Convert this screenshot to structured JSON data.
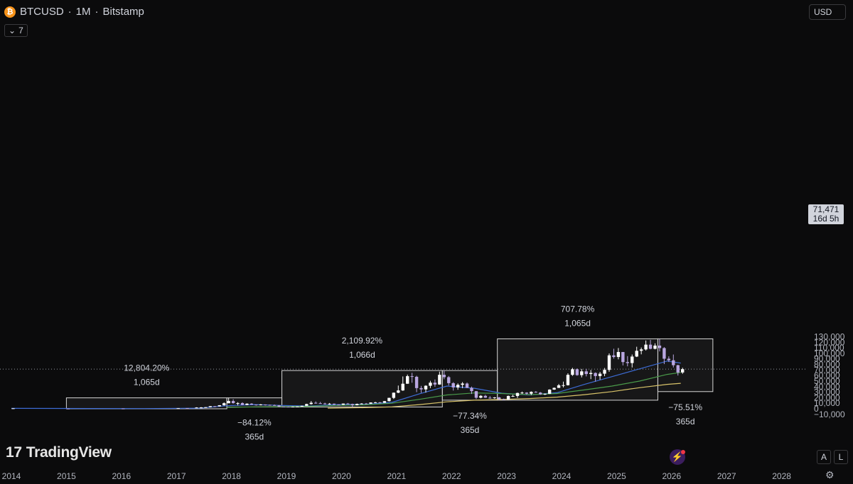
{
  "header": {
    "coin_glyph": "₿",
    "symbol": "BTCUSD",
    "separator1": "·",
    "interval": "1M",
    "separator2": "·",
    "exchange": "Bitstamp"
  },
  "indicators_toggle": {
    "icon": "chevron-down-icon",
    "glyph": "⌄",
    "count": "7"
  },
  "currency": "USD",
  "price_label": {
    "price": "71,471",
    "countdown": "16d 5h"
  },
  "buttons": {
    "auto": "A",
    "log": "L"
  },
  "brand": {
    "mark": "17",
    "name": "TradingView"
  },
  "icons": {
    "bolt_glyph": "⚡",
    "settings_glyph": "⚙"
  },
  "colors": {
    "background": "#0b0b0c",
    "up_candle": "#ffffff",
    "down_candle": "#b9a6e0",
    "ma_blue": "#3d6cd6",
    "ma_green": "#4a9b4a",
    "ma_yellow": "#d9c46a",
    "box_stroke": "#d6d6d6"
  },
  "chart_data": {
    "type": "candlestick",
    "x_axis": {
      "ticks": [
        "2014",
        "2015",
        "2016",
        "2017",
        "2018",
        "2019",
        "2020",
        "2021",
        "2022",
        "2023",
        "2024",
        "2025",
        "2026",
        "2027",
        "2028"
      ],
      "range": [
        "2014-01",
        "2028-06"
      ]
    },
    "y_axis": {
      "ticks": [
        "−10,000",
        "0",
        "10,000",
        "20,000",
        "30,000",
        "40,000",
        "50,000",
        "60,000",
        "70,000",
        "80,000",
        "90,000",
        "100,000",
        "110,000",
        "120,000",
        "130,000"
      ],
      "range": [
        -14000,
        136000
      ]
    },
    "current_price": 71471,
    "candles": [
      {
        "t": "2014-01",
        "o": 800,
        "h": 1000,
        "l": 750,
        "c": 820
      },
      {
        "t": "2015-01",
        "o": 320,
        "h": 330,
        "l": 170,
        "c": 220
      },
      {
        "t": "2016-01",
        "o": 430,
        "h": 460,
        "l": 360,
        "c": 370
      },
      {
        "t": "2017-01",
        "o": 960,
        "h": 1150,
        "l": 750,
        "c": 970
      },
      {
        "t": "2017-03",
        "o": 1190,
        "h": 1300,
        "l": 890,
        "c": 1080
      },
      {
        "t": "2017-05",
        "o": 1350,
        "h": 2800,
        "l": 1350,
        "c": 2300
      },
      {
        "t": "2017-06",
        "o": 2300,
        "h": 3000,
        "l": 2100,
        "c": 2480
      },
      {
        "t": "2017-07",
        "o": 2480,
        "h": 2900,
        "l": 1800,
        "c": 2870
      },
      {
        "t": "2017-08",
        "o": 2870,
        "h": 4800,
        "l": 2700,
        "c": 4700
      },
      {
        "t": "2017-09",
        "o": 4700,
        "h": 5000,
        "l": 2900,
        "c": 4340
      },
      {
        "t": "2017-10",
        "o": 4340,
        "h": 6500,
        "l": 4100,
        "c": 6450
      },
      {
        "t": "2017-11",
        "o": 6450,
        "h": 11400,
        "l": 5500,
        "c": 10000
      },
      {
        "t": "2017-12",
        "o": 10000,
        "h": 19700,
        "l": 10000,
        "c": 14000
      },
      {
        "t": "2018-01",
        "o": 14000,
        "h": 17200,
        "l": 9200,
        "c": 10200
      },
      {
        "t": "2018-02",
        "o": 10200,
        "h": 11800,
        "l": 6000,
        "c": 10300
      },
      {
        "t": "2018-03",
        "o": 10300,
        "h": 11700,
        "l": 6600,
        "c": 6900
      },
      {
        "t": "2018-04",
        "o": 6900,
        "h": 9800,
        "l": 6500,
        "c": 9250
      },
      {
        "t": "2018-05",
        "o": 9250,
        "h": 10000,
        "l": 7000,
        "c": 7500
      },
      {
        "t": "2018-06",
        "o": 7500,
        "h": 7700,
        "l": 5800,
        "c": 6400
      },
      {
        "t": "2018-07",
        "o": 6400,
        "h": 8500,
        "l": 6100,
        "c": 7750
      },
      {
        "t": "2018-08",
        "o": 7750,
        "h": 7800,
        "l": 5900,
        "c": 7000
      },
      {
        "t": "2018-09",
        "o": 7000,
        "h": 7400,
        "l": 6100,
        "c": 6600
      },
      {
        "t": "2018-10",
        "o": 6600,
        "h": 7700,
        "l": 6200,
        "c": 6300
      },
      {
        "t": "2018-11",
        "o": 6300,
        "h": 6600,
        "l": 3500,
        "c": 4000
      },
      {
        "t": "2018-12",
        "o": 4000,
        "h": 4400,
        "l": 3150,
        "c": 3700
      },
      {
        "t": "2019-01",
        "o": 3700,
        "h": 4100,
        "l": 3350,
        "c": 3450
      },
      {
        "t": "2019-02",
        "o": 3450,
        "h": 4200,
        "l": 3400,
        "c": 3800
      },
      {
        "t": "2019-03",
        "o": 3800,
        "h": 4100,
        "l": 3700,
        "c": 4100
      },
      {
        "t": "2019-04",
        "o": 4100,
        "h": 5600,
        "l": 4050,
        "c": 5350
      },
      {
        "t": "2019-05",
        "o": 5350,
        "h": 9100,
        "l": 5300,
        "c": 8550
      },
      {
        "t": "2019-06",
        "o": 8550,
        "h": 13900,
        "l": 7500,
        "c": 10800
      },
      {
        "t": "2019-07",
        "o": 10800,
        "h": 13200,
        "l": 9100,
        "c": 10100
      },
      {
        "t": "2019-08",
        "o": 10100,
        "h": 12300,
        "l": 9300,
        "c": 9600
      },
      {
        "t": "2019-09",
        "o": 9600,
        "h": 10900,
        "l": 7700,
        "c": 8300
      },
      {
        "t": "2019-10",
        "o": 8300,
        "h": 10400,
        "l": 7300,
        "c": 9150
      },
      {
        "t": "2019-11",
        "o": 9150,
        "h": 9500,
        "l": 6500,
        "c": 7550
      },
      {
        "t": "2019-12",
        "o": 7550,
        "h": 7750,
        "l": 6400,
        "c": 7200
      },
      {
        "t": "2020-01",
        "o": 7200,
        "h": 9600,
        "l": 6850,
        "c": 9350
      },
      {
        "t": "2020-02",
        "o": 9350,
        "h": 10500,
        "l": 8450,
        "c": 8550
      },
      {
        "t": "2020-03",
        "o": 8550,
        "h": 9200,
        "l": 3850,
        "c": 6400
      },
      {
        "t": "2020-04",
        "o": 6400,
        "h": 9450,
        "l": 6150,
        "c": 8650
      },
      {
        "t": "2020-05",
        "o": 8650,
        "h": 10100,
        "l": 8200,
        "c": 9450
      },
      {
        "t": "2020-06",
        "o": 9450,
        "h": 10400,
        "l": 8900,
        "c": 9140
      },
      {
        "t": "2020-07",
        "o": 9140,
        "h": 11450,
        "l": 8900,
        "c": 11350
      },
      {
        "t": "2020-08",
        "o": 11350,
        "h": 12500,
        "l": 10600,
        "c": 11650
      },
      {
        "t": "2020-09",
        "o": 11650,
        "h": 12100,
        "l": 9800,
        "c": 10800
      },
      {
        "t": "2020-10",
        "o": 10800,
        "h": 14100,
        "l": 10400,
        "c": 13800
      },
      {
        "t": "2020-11",
        "o": 13800,
        "h": 19900,
        "l": 13200,
        "c": 19700
      },
      {
        "t": "2020-12",
        "o": 19700,
        "h": 29300,
        "l": 17600,
        "c": 29000
      },
      {
        "t": "2021-01",
        "o": 29000,
        "h": 41900,
        "l": 28200,
        "c": 33100
      },
      {
        "t": "2021-02",
        "o": 33100,
        "h": 58300,
        "l": 32300,
        "c": 45200
      },
      {
        "t": "2021-03",
        "o": 45200,
        "h": 61700,
        "l": 45000,
        "c": 58800
      },
      {
        "t": "2021-04",
        "o": 58800,
        "h": 64800,
        "l": 47000,
        "c": 57700
      },
      {
        "t": "2021-05",
        "o": 57700,
        "h": 59500,
        "l": 30000,
        "c": 37300
      },
      {
        "t": "2021-06",
        "o": 37300,
        "h": 41300,
        "l": 28800,
        "c": 35000
      },
      {
        "t": "2021-07",
        "o": 35000,
        "h": 42400,
        "l": 29300,
        "c": 41500
      },
      {
        "t": "2021-08",
        "o": 41500,
        "h": 50500,
        "l": 37300,
        "c": 47100
      },
      {
        "t": "2021-09",
        "o": 47100,
        "h": 52900,
        "l": 39600,
        "c": 43800
      },
      {
        "t": "2021-10",
        "o": 43800,
        "h": 67000,
        "l": 43300,
        "c": 61300
      },
      {
        "t": "2021-11",
        "o": 61300,
        "h": 69000,
        "l": 53300,
        "c": 57000
      },
      {
        "t": "2021-12",
        "o": 57000,
        "h": 59100,
        "l": 42000,
        "c": 46200
      },
      {
        "t": "2022-01",
        "o": 46200,
        "h": 47900,
        "l": 32900,
        "c": 38500
      },
      {
        "t": "2022-02",
        "o": 38500,
        "h": 45800,
        "l": 34300,
        "c": 43200
      },
      {
        "t": "2022-03",
        "o": 43200,
        "h": 48200,
        "l": 37200,
        "c": 45500
      },
      {
        "t": "2022-04",
        "o": 45500,
        "h": 47400,
        "l": 37600,
        "c": 37700
      },
      {
        "t": "2022-05",
        "o": 37700,
        "h": 40000,
        "l": 26700,
        "c": 31800
      },
      {
        "t": "2022-06",
        "o": 31800,
        "h": 31900,
        "l": 17600,
        "c": 19900
      },
      {
        "t": "2022-07",
        "o": 19900,
        "h": 24700,
        "l": 18800,
        "c": 23300
      },
      {
        "t": "2022-08",
        "o": 23300,
        "h": 25200,
        "l": 19600,
        "c": 20000
      },
      {
        "t": "2022-09",
        "o": 20000,
        "h": 22800,
        "l": 18100,
        "c": 19400
      },
      {
        "t": "2022-10",
        "o": 19400,
        "h": 21000,
        "l": 18200,
        "c": 20500
      },
      {
        "t": "2022-11",
        "o": 20500,
        "h": 21400,
        "l": 15500,
        "c": 17200
      },
      {
        "t": "2022-12",
        "o": 17200,
        "h": 18400,
        "l": 16300,
        "c": 16500
      },
      {
        "t": "2023-01",
        "o": 16500,
        "h": 23900,
        "l": 16500,
        "c": 23100
      },
      {
        "t": "2023-02",
        "o": 23100,
        "h": 25200,
        "l": 21400,
        "c": 23100
      },
      {
        "t": "2023-03",
        "o": 23100,
        "h": 29200,
        "l": 19600,
        "c": 28500
      },
      {
        "t": "2023-04",
        "o": 28500,
        "h": 31000,
        "l": 26900,
        "c": 29200
      },
      {
        "t": "2023-05",
        "o": 29200,
        "h": 29800,
        "l": 25800,
        "c": 27200
      },
      {
        "t": "2023-06",
        "o": 27200,
        "h": 31400,
        "l": 24800,
        "c": 30500
      },
      {
        "t": "2023-07",
        "o": 30500,
        "h": 31800,
        "l": 28900,
        "c": 29200
      },
      {
        "t": "2023-08",
        "o": 29200,
        "h": 30200,
        "l": 25300,
        "c": 26000
      },
      {
        "t": "2023-09",
        "o": 26000,
        "h": 27500,
        "l": 24900,
        "c": 27000
      },
      {
        "t": "2023-10",
        "o": 27000,
        "h": 35200,
        "l": 26600,
        "c": 34600
      },
      {
        "t": "2023-11",
        "o": 34600,
        "h": 38400,
        "l": 34100,
        "c": 37700
      },
      {
        "t": "2023-12",
        "o": 37700,
        "h": 44700,
        "l": 37600,
        "c": 42300
      },
      {
        "t": "2024-01",
        "o": 42300,
        "h": 48900,
        "l": 38500,
        "c": 42600
      },
      {
        "t": "2024-02",
        "o": 42600,
        "h": 64000,
        "l": 41900,
        "c": 61200
      },
      {
        "t": "2024-03",
        "o": 61200,
        "h": 73800,
        "l": 59300,
        "c": 71300
      },
      {
        "t": "2024-04",
        "o": 71300,
        "h": 72800,
        "l": 59600,
        "c": 60700
      },
      {
        "t": "2024-05",
        "o": 60700,
        "h": 71900,
        "l": 56600,
        "c": 67500
      },
      {
        "t": "2024-06",
        "o": 67500,
        "h": 72000,
        "l": 58400,
        "c": 62700
      },
      {
        "t": "2024-07",
        "o": 62700,
        "h": 70000,
        "l": 53500,
        "c": 64600
      },
      {
        "t": "2024-08",
        "o": 64600,
        "h": 65600,
        "l": 49000,
        "c": 59000
      },
      {
        "t": "2024-09",
        "o": 59000,
        "h": 66500,
        "l": 52500,
        "c": 63300
      },
      {
        "t": "2024-10",
        "o": 63300,
        "h": 73600,
        "l": 58800,
        "c": 70200
      },
      {
        "t": "2024-11",
        "o": 70200,
        "h": 99800,
        "l": 66800,
        "c": 96400
      },
      {
        "t": "2024-12",
        "o": 96400,
        "h": 108300,
        "l": 90500,
        "c": 93400
      },
      {
        "t": "2025-01",
        "o": 93400,
        "h": 109600,
        "l": 89200,
        "c": 102400
      },
      {
        "t": "2025-02",
        "o": 102400,
        "h": 102500,
        "l": 78200,
        "c": 84300
      },
      {
        "t": "2025-03",
        "o": 84300,
        "h": 95000,
        "l": 76600,
        "c": 82500
      },
      {
        "t": "2025-04",
        "o": 82500,
        "h": 97900,
        "l": 74500,
        "c": 94200
      },
      {
        "t": "2025-05",
        "o": 94200,
        "h": 111900,
        "l": 93300,
        "c": 104600
      },
      {
        "t": "2025-06",
        "o": 104600,
        "h": 110500,
        "l": 98200,
        "c": 107100
      },
      {
        "t": "2025-07",
        "o": 107100,
        "h": 123200,
        "l": 105100,
        "c": 115700
      },
      {
        "t": "2025-08",
        "o": 115700,
        "h": 124400,
        "l": 107300,
        "c": 108200
      },
      {
        "t": "2025-09",
        "o": 108200,
        "h": 117900,
        "l": 107300,
        "c": 114000
      },
      {
        "t": "2025-10",
        "o": 114000,
        "h": 126200,
        "l": 103500,
        "c": 109500
      },
      {
        "t": "2025-11",
        "o": 109500,
        "h": 111200,
        "l": 80600,
        "c": 90300
      },
      {
        "t": "2025-12",
        "o": 90300,
        "h": 94600,
        "l": 84400,
        "c": 87500
      },
      {
        "t": "2026-01",
        "o": 87500,
        "h": 97900,
        "l": 74500,
        "c": 78600
      },
      {
        "t": "2026-02",
        "o": 78600,
        "h": 79400,
        "l": 60000,
        "c": 65500
      },
      {
        "t": "2026-03",
        "o": 65500,
        "h": 74000,
        "l": 63000,
        "c": 71471
      }
    ],
    "moving_averages": [
      {
        "color": "blue",
        "points": [
          [
            "2014-01",
            800
          ],
          [
            "2015-06",
            500
          ],
          [
            "2016-06",
            420
          ],
          [
            "2017-06",
            1200
          ],
          [
            "2017-12",
            5500
          ],
          [
            "2018-06",
            7500
          ],
          [
            "2018-12",
            6000
          ],
          [
            "2019-06",
            5000
          ],
          [
            "2019-12",
            7500
          ],
          [
            "2020-06",
            8000
          ],
          [
            "2020-12",
            11500
          ],
          [
            "2021-06",
            27000
          ],
          [
            "2021-12",
            41000
          ],
          [
            "2022-06",
            37000
          ],
          [
            "2022-12",
            28000
          ],
          [
            "2023-06",
            25000
          ],
          [
            "2023-12",
            29000
          ],
          [
            "2024-06",
            44000
          ],
          [
            "2024-12",
            58000
          ],
          [
            "2025-06",
            72000
          ],
          [
            "2025-12",
            86000
          ],
          [
            "2026-03",
            82500
          ]
        ]
      },
      {
        "color": "green",
        "points": [
          [
            "2017-12",
            2500
          ],
          [
            "2018-06",
            3500
          ],
          [
            "2018-12",
            3800
          ],
          [
            "2019-06",
            4500
          ],
          [
            "2019-12",
            6000
          ],
          [
            "2020-06",
            7000
          ],
          [
            "2020-12",
            10000
          ],
          [
            "2021-06",
            17000
          ],
          [
            "2021-12",
            25000
          ],
          [
            "2022-06",
            28500
          ],
          [
            "2022-12",
            27500
          ],
          [
            "2023-06",
            25500
          ],
          [
            "2023-12",
            27500
          ],
          [
            "2024-06",
            34000
          ],
          [
            "2024-12",
            41000
          ],
          [
            "2025-06",
            50000
          ],
          [
            "2025-12",
            62000
          ],
          [
            "2026-03",
            65500
          ]
        ]
      },
      {
        "color": "yellow",
        "points": [
          [
            "2019-10",
            1200
          ],
          [
            "2020-06",
            2000
          ],
          [
            "2020-12",
            3500
          ],
          [
            "2021-06",
            7500
          ],
          [
            "2021-12",
            12500
          ],
          [
            "2022-06",
            15500
          ],
          [
            "2022-12",
            16800
          ],
          [
            "2023-06",
            18500
          ],
          [
            "2023-12",
            21000
          ],
          [
            "2024-06",
            25500
          ],
          [
            "2024-12",
            31000
          ],
          [
            "2025-06",
            38000
          ],
          [
            "2025-12",
            44000
          ],
          [
            "2026-03",
            46000
          ]
        ]
      }
    ],
    "range_boxes": [
      {
        "from": "2015-01",
        "to": "2017-12",
        "low": 0,
        "high": 19700,
        "label": "12,804.20%",
        "duration": "1,065d",
        "label_position": "above"
      },
      {
        "from": "2017-12",
        "to": "2018-12",
        "low": 3150,
        "high": 19700,
        "label": "−84.12%",
        "duration": "365d",
        "label_position": "below"
      },
      {
        "from": "2018-12",
        "to": "2021-11",
        "low": 3150,
        "high": 69000,
        "label": "2,109.92%",
        "duration": "1,066d",
        "label_position": "above"
      },
      {
        "from": "2021-11",
        "to": "2022-11",
        "low": 15500,
        "high": 69000,
        "label": "−77.34%",
        "duration": "365d",
        "label_position": "below"
      },
      {
        "from": "2022-11",
        "to": "2025-10",
        "low": 15500,
        "high": 126200,
        "label": "707.78%",
        "duration": "1,065d",
        "label_position": "above"
      },
      {
        "from": "2025-10",
        "to": "2026-10",
        "low": 31000,
        "high": 126200,
        "label": "−75.51%",
        "duration": "365d",
        "label_position": "below"
      }
    ]
  }
}
